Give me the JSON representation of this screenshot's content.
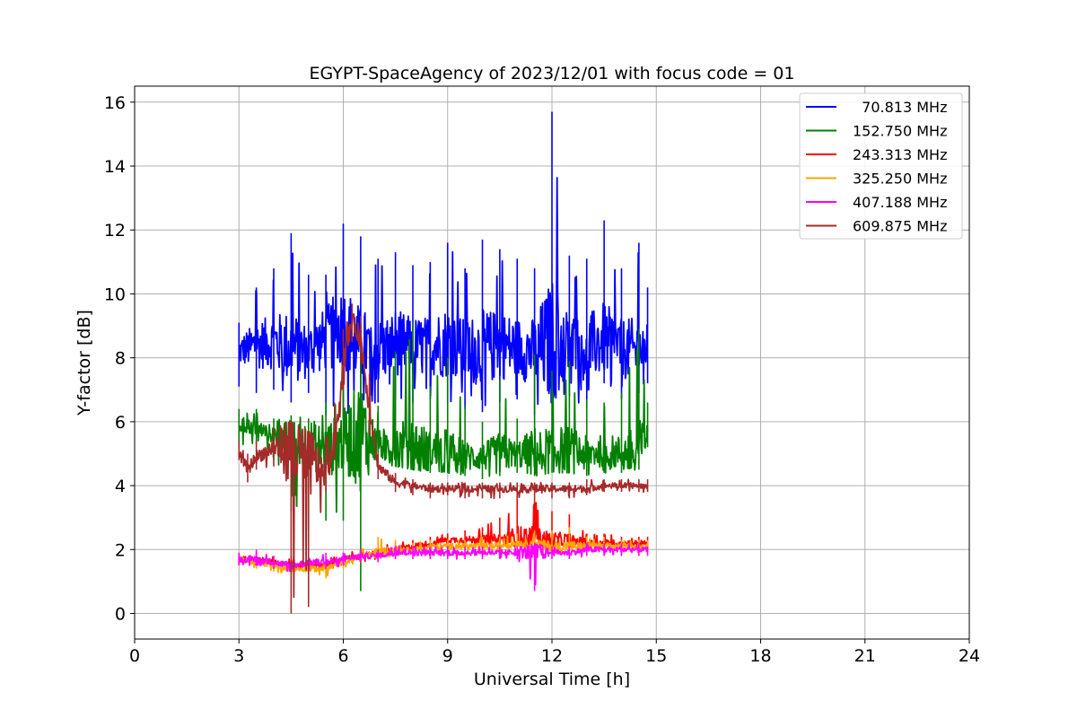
{
  "chart_data": {
    "type": "line",
    "title": "EGYPT-SpaceAgency of 2023/12/01 with focus code = 01",
    "xlabel": "Universal Time [h]",
    "ylabel": "Y-factor [dB]",
    "xlim": [
      0,
      24
    ],
    "ylim": [
      -0.8,
      16.5
    ],
    "xticks": [
      0,
      3,
      6,
      9,
      12,
      15,
      18,
      21,
      24
    ],
    "yticks": [
      0,
      2,
      4,
      6,
      8,
      10,
      12,
      14,
      16
    ],
    "grid": true,
    "legend_position": "top-right",
    "x_range_of_data": [
      3.0,
      14.75
    ],
    "series": [
      {
        "name": "  70.813 MHz",
        "color": "#0000ff",
        "x": [
          3.0,
          3.5,
          4.0,
          4.5,
          5.0,
          5.5,
          6.0,
          6.5,
          7.0,
          7.5,
          8.0,
          8.5,
          9.0,
          9.5,
          10.0,
          10.5,
          11.0,
          11.5,
          12.0,
          12.5,
          13.0,
          13.5,
          14.0,
          14.5,
          14.75
        ],
        "y_mean": [
          8.2,
          8.4,
          8.5,
          8.3,
          8.2,
          8.6,
          9.0,
          8.4,
          8.2,
          8.5,
          8.3,
          8.4,
          8.5,
          8.2,
          8.3,
          8.4,
          8.3,
          8.2,
          8.5,
          8.4,
          8.3,
          8.6,
          8.3,
          8.2,
          8.4
        ],
        "y_min": [
          7.1,
          6.9,
          7.0,
          6.6,
          6.9,
          6.2,
          6.1,
          6.5,
          6.6,
          6.7,
          6.6,
          6.7,
          6.6,
          6.4,
          6.3,
          6.6,
          6.7,
          6.2,
          6.6,
          6.8,
          6.4,
          7.2,
          6.7,
          6.9,
          7.2
        ],
        "y_max": [
          9.1,
          10.2,
          10.8,
          11.9,
          10.6,
          10.6,
          12.2,
          11.8,
          11.1,
          11.3,
          10.9,
          11.0,
          11.6,
          10.8,
          11.7,
          11.4,
          11.1,
          10.8,
          15.7,
          11.2,
          11.1,
          12.3,
          10.8,
          11.6,
          10.2
        ]
      },
      {
        "name": "152.750 MHz",
        "color": "#008000",
        "x": [
          3.0,
          3.5,
          4.0,
          4.5,
          5.0,
          5.5,
          6.0,
          6.5,
          7.0,
          7.5,
          8.0,
          8.5,
          9.0,
          9.5,
          10.0,
          10.5,
          11.0,
          11.5,
          12.0,
          12.5,
          13.0,
          13.5,
          14.0,
          14.5,
          14.75
        ],
        "y_mean": [
          5.9,
          5.8,
          5.6,
          5.4,
          5.3,
          5.1,
          5.4,
          5.6,
          5.3,
          5.2,
          5.2,
          5.1,
          5.0,
          4.9,
          4.9,
          5.0,
          5.0,
          5.0,
          5.1,
          5.1,
          5.0,
          5.1,
          5.0,
          5.1,
          5.6
        ],
        "y_min": [
          5.2,
          5.3,
          4.8,
          3.2,
          2.6,
          2.9,
          2.9,
          0.7,
          4.7,
          4.6,
          4.5,
          4.4,
          4.4,
          4.3,
          4.2,
          4.3,
          4.4,
          4.3,
          4.4,
          4.4,
          4.3,
          4.4,
          4.4,
          4.5,
          5.2
        ],
        "y_max": [
          6.4,
          6.4,
          6.1,
          6.2,
          6.1,
          6.6,
          7.3,
          8.6,
          6.5,
          8.2,
          9.1,
          7.1,
          8.0,
          6.5,
          6.0,
          7.3,
          6.1,
          8.1,
          7.6,
          7.9,
          6.7,
          6.6,
          6.9,
          8.9,
          6.6
        ]
      },
      {
        "name": "243.313 MHz",
        "color": "#ff0000",
        "x": [
          3.0,
          3.5,
          4.0,
          4.5,
          5.0,
          5.5,
          6.0,
          6.5,
          7.0,
          7.5,
          8.0,
          8.5,
          9.0,
          9.5,
          10.0,
          10.5,
          11.0,
          11.5,
          12.0,
          12.5,
          13.0,
          13.5,
          14.0,
          14.5,
          14.75
        ],
        "y_mean": [
          1.7,
          1.7,
          1.6,
          1.5,
          1.5,
          1.5,
          1.7,
          1.8,
          1.9,
          2.0,
          2.1,
          2.2,
          2.3,
          2.3,
          2.3,
          2.3,
          2.4,
          2.4,
          2.3,
          2.3,
          2.2,
          2.2,
          2.2,
          2.2,
          2.2
        ],
        "y_min": [
          1.5,
          1.5,
          1.4,
          1.3,
          1.3,
          1.3,
          1.5,
          1.6,
          1.7,
          1.8,
          1.9,
          2.0,
          2.1,
          2.1,
          2.1,
          2.1,
          2.1,
          2.1,
          2.1,
          2.1,
          2.0,
          2.0,
          2.0,
          2.0,
          2.0
        ],
        "y_max": [
          1.9,
          1.9,
          1.8,
          1.7,
          1.7,
          1.7,
          1.9,
          2.0,
          2.1,
          2.2,
          2.3,
          2.4,
          2.5,
          2.6,
          2.7,
          3.0,
          3.6,
          3.5,
          3.2,
          3.1,
          2.5,
          2.5,
          2.4,
          2.4,
          2.4
        ]
      },
      {
        "name": "325.250 MHz",
        "color": "#ffa500",
        "x": [
          3.0,
          3.5,
          4.0,
          4.5,
          5.0,
          5.5,
          6.0,
          6.5,
          7.0,
          7.5,
          8.0,
          8.5,
          9.0,
          9.5,
          10.0,
          10.5,
          11.0,
          11.5,
          12.0,
          12.5,
          13.0,
          13.5,
          14.0,
          14.5,
          14.75
        ],
        "y_mean": [
          1.7,
          1.6,
          1.5,
          1.4,
          1.4,
          1.4,
          1.6,
          1.8,
          1.9,
          2.0,
          2.0,
          2.1,
          2.1,
          2.1,
          2.1,
          2.1,
          2.2,
          2.2,
          2.1,
          2.1,
          2.1,
          2.1,
          2.1,
          2.1,
          2.1
        ],
        "y_min": [
          1.5,
          1.4,
          1.3,
          1.2,
          1.2,
          1.1,
          1.4,
          1.6,
          1.7,
          1.8,
          1.9,
          1.9,
          1.9,
          1.9,
          1.9,
          1.9,
          2.0,
          2.0,
          1.9,
          1.9,
          1.9,
          1.9,
          1.9,
          1.9,
          1.9
        ],
        "y_max": [
          1.9,
          1.8,
          1.7,
          1.6,
          1.6,
          1.6,
          1.8,
          2.0,
          2.4,
          2.3,
          2.2,
          2.3,
          2.3,
          2.3,
          2.4,
          2.4,
          2.5,
          2.6,
          2.6,
          2.7,
          2.4,
          2.4,
          2.3,
          2.3,
          2.3
        ]
      },
      {
        "name": "407.188 MHz",
        "color": "#ff00ff",
        "x": [
          3.0,
          3.5,
          4.0,
          4.5,
          5.0,
          5.5,
          6.0,
          6.5,
          7.0,
          7.5,
          8.0,
          8.5,
          9.0,
          9.5,
          10.0,
          10.5,
          11.0,
          11.5,
          12.0,
          12.5,
          13.0,
          13.5,
          14.0,
          14.5,
          14.75
        ],
        "y_mean": [
          1.7,
          1.7,
          1.6,
          1.5,
          1.6,
          1.6,
          1.7,
          1.8,
          1.8,
          1.9,
          1.9,
          1.9,
          1.9,
          1.9,
          1.9,
          1.9,
          1.9,
          1.9,
          1.9,
          1.9,
          2.0,
          2.0,
          2.0,
          2.0,
          2.0
        ],
        "y_min": [
          1.5,
          1.5,
          1.4,
          1.3,
          1.3,
          1.4,
          1.5,
          1.6,
          1.6,
          1.7,
          1.7,
          1.7,
          1.7,
          1.7,
          1.7,
          1.7,
          1.7,
          0.7,
          1.7,
          1.7,
          1.8,
          1.8,
          1.8,
          1.8,
          1.8
        ],
        "y_max": [
          1.9,
          2.0,
          1.8,
          1.8,
          1.8,
          1.9,
          1.9,
          2.0,
          2.0,
          2.1,
          2.1,
          2.1,
          2.1,
          2.1,
          2.1,
          2.1,
          2.1,
          2.2,
          2.1,
          2.1,
          2.2,
          2.2,
          2.2,
          2.2,
          2.1
        ]
      },
      {
        "name": "609.875 MHz",
        "color": "#a52a2a",
        "x": [
          3.0,
          3.25,
          3.5,
          4.0,
          4.5,
          5.0,
          5.5,
          5.75,
          6.0,
          6.25,
          6.5,
          6.75,
          7.0,
          7.5,
          8.0,
          8.5,
          9.0,
          9.5,
          10.0,
          10.5,
          11.0,
          11.5,
          12.0,
          12.5,
          13.0,
          13.5,
          14.0,
          14.5,
          14.75
        ],
        "y_mean": [
          5.0,
          4.5,
          4.9,
          5.2,
          5.2,
          4.8,
          4.4,
          5.4,
          7.8,
          9.2,
          8.6,
          6.5,
          4.6,
          4.1,
          4.0,
          3.9,
          3.9,
          3.9,
          3.9,
          3.9,
          3.9,
          3.9,
          3.9,
          3.9,
          3.9,
          4.0,
          4.0,
          4.0,
          4.0
        ],
        "y_min": [
          4.8,
          4.1,
          4.5,
          4.6,
          0.0,
          0.2,
          3.8,
          4.8,
          7.0,
          8.5,
          7.8,
          5.6,
          4.2,
          3.8,
          3.7,
          3.6,
          3.7,
          3.6,
          3.6,
          3.6,
          3.6,
          3.5,
          3.6,
          3.6,
          3.7,
          3.8,
          3.8,
          3.8,
          3.8
        ],
        "y_max": [
          5.4,
          5.0,
          5.4,
          5.8,
          6.0,
          5.7,
          5.5,
          6.6,
          8.9,
          9.7,
          9.3,
          7.5,
          5.0,
          4.4,
          4.2,
          4.1,
          4.1,
          4.1,
          4.1,
          4.1,
          4.1,
          4.1,
          4.1,
          4.1,
          4.2,
          4.2,
          4.2,
          4.2,
          4.2
        ]
      }
    ]
  }
}
